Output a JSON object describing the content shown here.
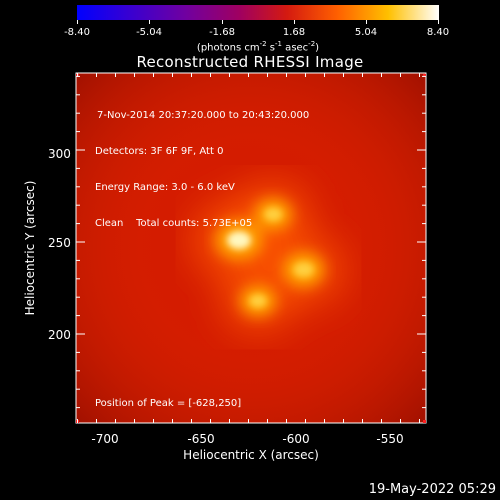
{
  "colorbar": {
    "ticks": [
      "-8.40",
      "-5.04",
      "-1.68",
      "1.68",
      "5.04",
      "8.40"
    ],
    "units_prefix": "(photons cm",
    "units_exp1": "-2",
    "units_mid": " s",
    "units_exp2": "-1",
    "units_mid2": " asec",
    "units_exp3": "-2",
    "units_suffix": ")"
  },
  "title": "Reconstructed RHESSI Image",
  "annotations": {
    "time_range": "7-Nov-2014 20:37:20.000 to 20:43:20.000",
    "detectors": "Detectors: 3F 6F 9F, Att 0",
    "energy": "Energy Range: 3.0 - 6.0 keV",
    "method": "Clean    Total counts: 5.73E+05"
  },
  "peak_position": "Position of Peak = [-628,250]",
  "x_axis": {
    "label": "Heliocentric X (arcsec)",
    "ticks": [
      "-700",
      "-650",
      "-600",
      "-550"
    ]
  },
  "y_axis": {
    "label": "Heliocentric Y (arcsec)",
    "ticks": [
      "300",
      "250",
      "200"
    ]
  },
  "timestamp": "19-May-2022 05:29",
  "colors": {
    "background_map": "#d21a00",
    "axis": "#ffffff",
    "colorbar_low": "#0000ff",
    "colorbar_high": "#ffffff"
  },
  "sources": [
    {
      "name": "main-source",
      "x": -630,
      "y": 251,
      "strength": 1.0
    },
    {
      "name": "upper-source",
      "x": -612,
      "y": 265,
      "strength": 0.75
    },
    {
      "name": "right-source",
      "x": -596,
      "y": 235,
      "strength": 0.85
    },
    {
      "name": "lower-source",
      "x": -620,
      "y": 218,
      "strength": 0.72
    }
  ]
}
